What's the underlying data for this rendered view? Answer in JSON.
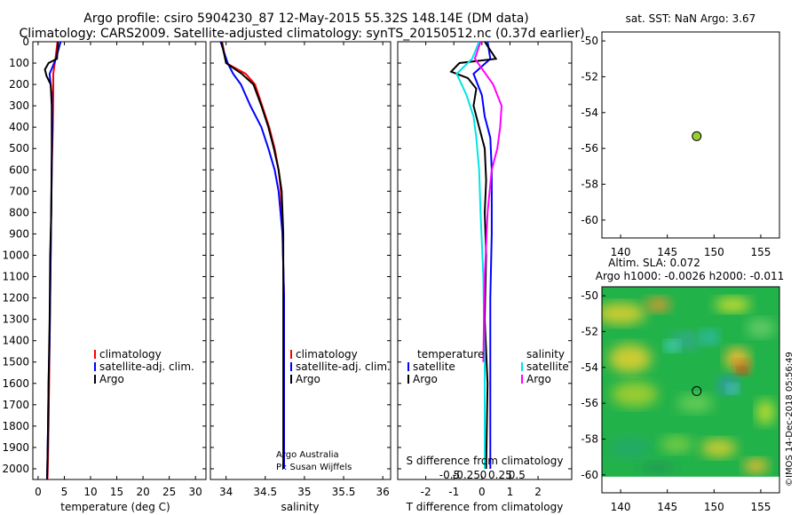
{
  "header": {
    "line1": "Argo profile: csiro 5904230_87 12-May-2015 55.32S 148.14E (DM data)",
    "line2": "Climatology: CARS2009. Satellite-adjusted climatology: synTS_20150512.nc (0.37d earlier)"
  },
  "sst_title": "sat. SST: NaN Argo: 3.67",
  "sla_title1": "Altim. SLA: 0.072",
  "sla_title2": "Argo h1000: -0.0026 h2000: -0.011",
  "watermark": "©IMOS 14-Dec-2018 05:56:49",
  "credit1": "Argo Australia",
  "credit2": "PI: Susan Wijffels",
  "diff_title_s": "S difference from climatology",
  "colors": {
    "climatology": "#ff0000",
    "satellite": "#0000ff",
    "argo": "#000000",
    "sat_salinity": "#00e5e5",
    "argo_salinity": "#ff00ff",
    "marker": "#9acd32"
  },
  "chart_data": [
    {
      "type": "line",
      "xlabel": "temperature (deg C)",
      "xlim": [
        -1,
        32
      ],
      "ylim": [
        2050,
        0
      ],
      "xticks": [
        "0",
        "5",
        "10",
        "15",
        "20",
        "25",
        "30"
      ],
      "yticks": [
        "0",
        "100",
        "200",
        "300",
        "400",
        "500",
        "600",
        "700",
        "800",
        "900",
        "1000",
        "1100",
        "1200",
        "1300",
        "1400",
        "1500",
        "1600",
        "1700",
        "1800",
        "1900",
        "2000"
      ],
      "legend": [
        "climatology",
        "satellite-adj. clim.",
        "Argo"
      ],
      "series": [
        {
          "name": "climatology",
          "color": "#ff0000",
          "x": [
            3.7,
            3.3,
            2.9,
            2.9,
            2.8,
            2.6,
            2.5,
            2.4,
            2.3,
            2.2,
            2.1,
            2.0,
            1.9,
            1.8
          ],
          "y": [
            0,
            80,
            150,
            250,
            400,
            600,
            800,
            1000,
            1200,
            1400,
            1600,
            1800,
            1950,
            2050
          ]
        },
        {
          "name": "satellite-adj. clim.",
          "color": "#0000ff",
          "x": [
            4.3,
            3.4,
            2.2,
            2.6,
            2.7,
            2.6,
            2.5,
            2.4,
            2.3,
            2.2,
            2.0,
            1.9,
            1.8,
            1.7
          ],
          "y": [
            0,
            80,
            150,
            250,
            400,
            600,
            800,
            1000,
            1200,
            1400,
            1600,
            1800,
            1950,
            2050
          ]
        },
        {
          "name": "Argo",
          "color": "#000000",
          "x": [
            3.8,
            3.6,
            2.0,
            1.3,
            1.6,
            2.4,
            2.6,
            2.6,
            2.5,
            2.3,
            2.2,
            2.0,
            1.9,
            1.8,
            1.7
          ],
          "y": [
            0,
            80,
            100,
            130,
            160,
            200,
            300,
            500,
            800,
            1000,
            1300,
            1600,
            1800,
            1950,
            2050
          ]
        }
      ]
    },
    {
      "type": "line",
      "xlabel": "salinity",
      "xlim": [
        33.8,
        36.1
      ],
      "ylim": [
        2050,
        0
      ],
      "xticks": [
        "34",
        "34.5",
        "35",
        "35.5",
        "36"
      ],
      "legend": [
        "climatology",
        "satellite-adj. clim.",
        "Argo"
      ],
      "series": [
        {
          "name": "climatology",
          "color": "#ff0000",
          "x": [
            33.95,
            34.0,
            34.25,
            34.37,
            34.46,
            34.55,
            34.62,
            34.67,
            34.7,
            34.72,
            34.74,
            34.74
          ],
          "y": [
            0,
            100,
            150,
            200,
            300,
            400,
            500,
            600,
            700,
            900,
            1200,
            2000
          ]
        },
        {
          "name": "satellite-adj. clim.",
          "color": "#0000ff",
          "x": [
            33.93,
            34.02,
            34.09,
            34.19,
            34.31,
            34.45,
            34.54,
            34.62,
            34.67,
            34.72,
            34.74,
            34.74
          ],
          "y": [
            0,
            100,
            150,
            200,
            300,
            400,
            500,
            600,
            700,
            900,
            1200,
            2000
          ]
        },
        {
          "name": "Argo",
          "color": "#000000",
          "x": [
            33.94,
            34.0,
            34.2,
            34.35,
            34.45,
            34.54,
            34.61,
            34.67,
            34.71,
            34.73,
            34.73
          ],
          "y": [
            0,
            100,
            150,
            200,
            300,
            400,
            500,
            600,
            700,
            900,
            2000
          ]
        }
      ]
    },
    {
      "type": "line",
      "xlabel": "T difference from climatology",
      "xlim": [
        -3,
        3.2
      ],
      "ylim": [
        2050,
        0
      ],
      "xticks": [
        "-2",
        "-1",
        "0",
        "1",
        "2"
      ],
      "sticks": [
        "-0.5",
        "-0.25",
        "0",
        "0.25",
        "0.5"
      ],
      "legend_t": [
        "temperature",
        "satellite",
        "Argo"
      ],
      "legend_s": [
        "salinity",
        "satellite",
        "Argo"
      ],
      "series": [
        {
          "name": "satellite",
          "color": "#0000ff",
          "x": [
            0.2,
            0.3,
            -0.3,
            0.0,
            0.1,
            0.2,
            0.3,
            0.35,
            0.35,
            0.3,
            0.3,
            0.3
          ],
          "y": [
            0,
            80,
            150,
            250,
            350,
            400,
            450,
            600,
            900,
            1200,
            1600,
            2000
          ]
        },
        {
          "name": "Argo",
          "color": "#000000",
          "x": [
            0.1,
            0.5,
            -0.8,
            -1.1,
            -0.5,
            -0.2,
            -0.3,
            -0.1,
            0.1,
            0.15,
            0.1,
            0.15,
            0.1,
            0.2,
            0.15
          ],
          "y": [
            0,
            80,
            100,
            140,
            170,
            220,
            300,
            400,
            500,
            650,
            800,
            1000,
            1300,
            1600,
            2000
          ]
        },
        {
          "name": "sat salinity",
          "color": "#00e5e5",
          "x": [
            -0.1,
            -0.35,
            -0.9,
            -0.55,
            -0.3,
            -0.2,
            -0.1,
            -0.05,
            0.05,
            0.1,
            0.1
          ],
          "y": [
            0,
            80,
            150,
            250,
            350,
            450,
            600,
            800,
            1100,
            1500,
            2000
          ]
        },
        {
          "name": "Argo salinity",
          "color": "#ff00ff",
          "x": [
            -0.05,
            -0.25,
            0.4,
            0.7,
            0.65,
            0.55,
            0.35,
            0.2,
            0.1,
            0.05
          ],
          "y": [
            0,
            80,
            200,
            300,
            400,
            500,
            600,
            800,
            1100,
            1500
          ]
        }
      ]
    },
    {
      "type": "scatter",
      "xlim": [
        138,
        157
      ],
      "ylim": [
        -61,
        -49.5
      ],
      "xticks": [
        "140",
        "145",
        "150",
        "155"
      ],
      "yticks": [
        "-50",
        "-52",
        "-54",
        "-56",
        "-58",
        "-60"
      ],
      "points": [
        {
          "x": 148.14,
          "y": -55.32
        }
      ]
    },
    {
      "type": "heatmap",
      "xlim": [
        138,
        157
      ],
      "ylim": [
        -61,
        -49.5
      ],
      "xticks": [
        "140",
        "145",
        "150",
        "155"
      ],
      "yticks": [
        "-50",
        "-52",
        "-54",
        "-56",
        "-58",
        "-60"
      ],
      "points": [
        {
          "x": 148.14,
          "y": -55.32
        }
      ]
    }
  ]
}
